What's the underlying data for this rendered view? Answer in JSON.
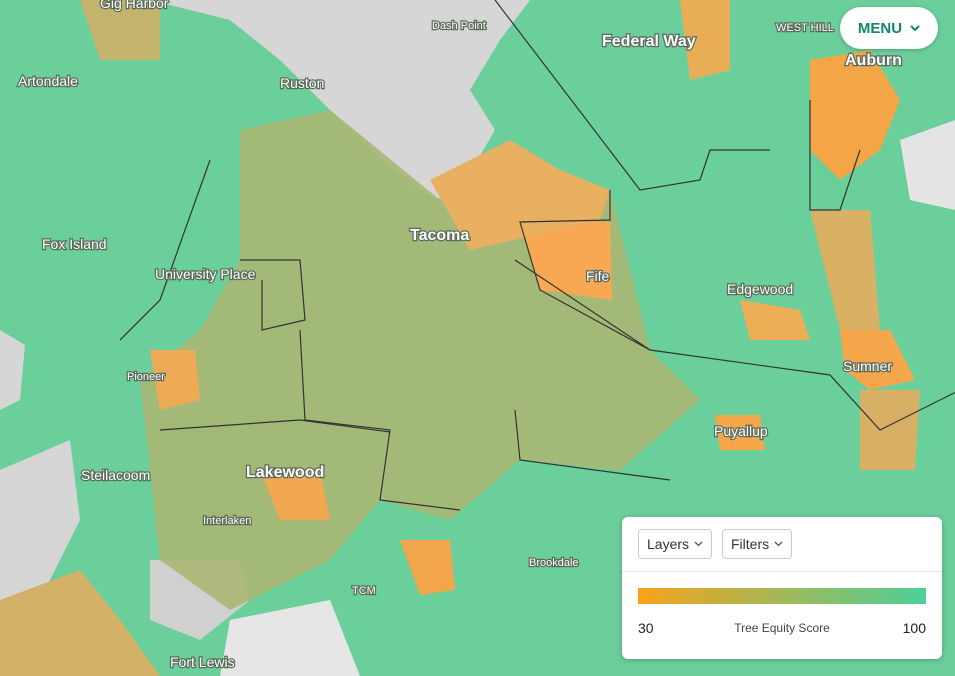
{
  "map": {
    "places": [
      {
        "label": "Gig Harbor"
      },
      {
        "label": "Artondale"
      },
      {
        "label": "Ruston"
      },
      {
        "label": "Dash Point"
      },
      {
        "label": "Federal Way"
      },
      {
        "label": "WEST HILL"
      },
      {
        "label": "Auburn"
      },
      {
        "label": "Fox Island"
      },
      {
        "label": "Tacoma"
      },
      {
        "label": "University Place"
      },
      {
        "label": "Fife"
      },
      {
        "label": "Edgewood"
      },
      {
        "label": "Pioneer"
      },
      {
        "label": "Sumner"
      },
      {
        "label": "Puyallup"
      },
      {
        "label": "Steilacoom"
      },
      {
        "label": "Lakewood"
      },
      {
        "label": "Interlaken"
      },
      {
        "label": "Brookdale"
      },
      {
        "label": "TCM"
      },
      {
        "label": "Fort Lewis"
      }
    ]
  },
  "menu": "MENU",
  "controls": {
    "layers": "Layers",
    "filters": "Filters"
  },
  "legend": {
    "min": 30,
    "title": "Tree Equity Score",
    "max": 100
  }
}
